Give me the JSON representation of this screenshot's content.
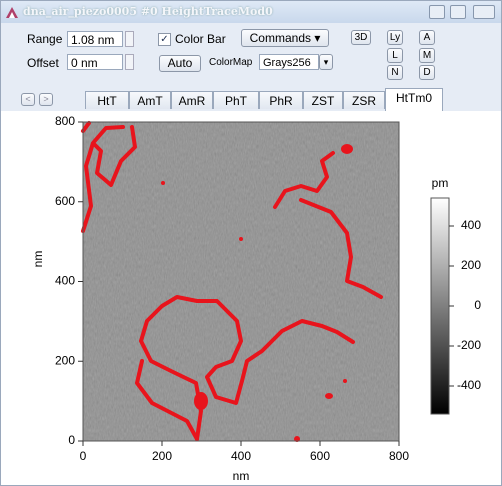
{
  "window": {
    "title": "dna_air_piezo0005 #0 HeightTraceMod0"
  },
  "controls": {
    "range_label": "Range",
    "range_value": "1.08 nm",
    "offset_label": "Offset",
    "offset_value": "0 nm",
    "color_bar": "Color Bar",
    "commands": "Commands",
    "auto": "Auto",
    "colormap_label": "ColorMap",
    "colormap_value": "Grays256",
    "buttons": [
      "3D",
      "Ly",
      "A",
      "L",
      "M",
      "N",
      "D"
    ]
  },
  "tabs": {
    "items": [
      "HtT",
      "AmT",
      "AmR",
      "PhT",
      "PhR",
      "ZST",
      "ZSR",
      "HtTm0"
    ],
    "active": 7
  },
  "plot": {
    "xlabel": "nm",
    "ylabel": "nm",
    "xlim": [
      0,
      800
    ],
    "ylim": [
      0,
      800
    ],
    "xticks": [
      0,
      200,
      400,
      600,
      800
    ],
    "yticks": [
      0,
      200,
      400,
      600,
      800
    ],
    "colorbar": {
      "label": "pm",
      "lim": [
        -540,
        540
      ],
      "ticks": [
        400,
        200,
        0,
        -200,
        -400
      ]
    }
  }
}
